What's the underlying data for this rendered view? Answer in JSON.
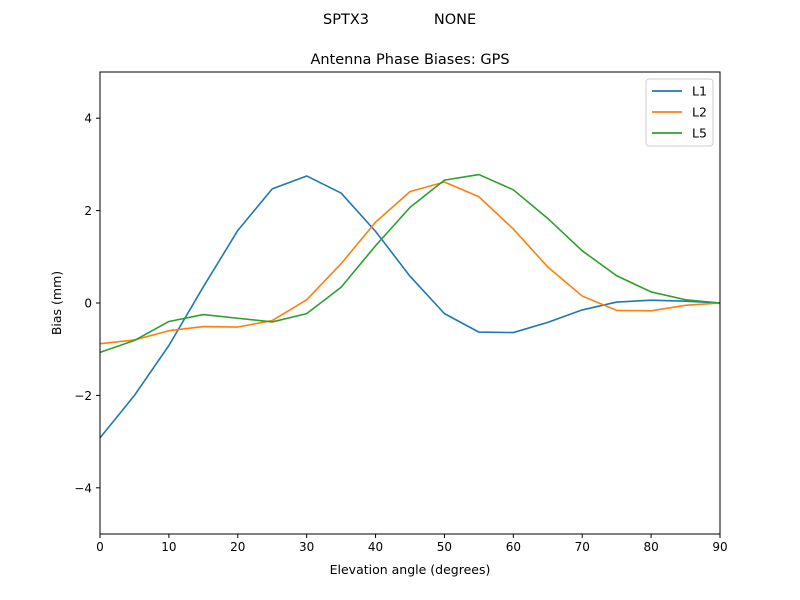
{
  "figure": {
    "suptitle_left": "SPTX3",
    "suptitle_right": "NONE"
  },
  "chart_data": {
    "type": "line",
    "title": "Antenna Phase Biases: GPS",
    "xlabel": "Elevation angle (degrees)",
    "ylabel": "Bias (mm)",
    "xlim": [
      0,
      90
    ],
    "ylim": [
      -5,
      5
    ],
    "xticks": [
      0,
      10,
      20,
      30,
      40,
      50,
      60,
      70,
      80,
      90
    ],
    "yticks": [
      -4,
      -2,
      0,
      2,
      4
    ],
    "xtick_labels": [
      "0",
      "10",
      "20",
      "30",
      "40",
      "50",
      "60",
      "70",
      "80",
      "90"
    ],
    "ytick_labels": [
      "−4",
      "−2",
      "0",
      "2",
      "4"
    ],
    "grid": false,
    "legend_position": "top-right",
    "x": [
      0,
      5,
      10,
      15,
      20,
      25,
      30,
      35,
      40,
      45,
      50,
      55,
      60,
      65,
      70,
      75,
      80,
      85,
      90
    ],
    "series": [
      {
        "name": "L1",
        "color": "#1f77b4",
        "values": [
          -2.92,
          -2.0,
          -0.92,
          0.35,
          1.57,
          2.47,
          2.75,
          2.38,
          1.55,
          0.58,
          -0.23,
          -0.63,
          -0.64,
          -0.42,
          -0.15,
          0.02,
          0.06,
          0.04,
          0.0
        ]
      },
      {
        "name": "L2",
        "color": "#ff7f0e",
        "values": [
          -0.88,
          -0.8,
          -0.6,
          -0.51,
          -0.52,
          -0.38,
          0.07,
          0.85,
          1.75,
          2.41,
          2.62,
          2.3,
          1.6,
          0.78,
          0.15,
          -0.16,
          -0.17,
          -0.05,
          0.0
        ]
      },
      {
        "name": "L5",
        "color": "#2ca02c",
        "values": [
          -1.07,
          -0.81,
          -0.4,
          -0.25,
          -0.33,
          -0.41,
          -0.23,
          0.34,
          1.24,
          2.07,
          2.66,
          2.78,
          2.45,
          1.83,
          1.13,
          0.59,
          0.24,
          0.07,
          0.0
        ]
      }
    ]
  }
}
